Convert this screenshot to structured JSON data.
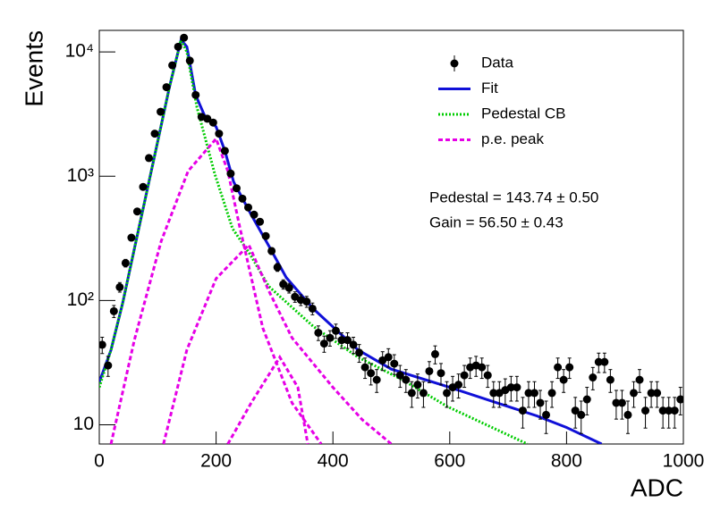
{
  "chart_data": {
    "type": "line",
    "xlabel": "ADC",
    "ylabel": "Events",
    "xlim": [
      0,
      1000
    ],
    "ylim": [
      7,
      14900
    ],
    "yscale": "log",
    "xticks": [
      0,
      200,
      400,
      600,
      800,
      1000
    ],
    "yticks": [
      10,
      {
        "value": 100,
        "label": "10²"
      },
      {
        "value": 1000,
        "label": "10³"
      },
      {
        "value": 10000,
        "label": "10⁴"
      }
    ],
    "legend": "top-right",
    "annotations": [
      "Pedestal = 143.74 ± 0.50",
      "Gain = 56.50 ± 0.43"
    ],
    "series": [
      {
        "name": "Data",
        "type": "errorbar",
        "color": "#000000",
        "x": [
          5,
          15,
          25,
          35,
          45,
          55,
          65,
          75,
          85,
          95,
          105,
          115,
          125,
          135,
          145,
          155,
          165,
          175,
          185,
          195,
          205,
          215,
          225,
          235,
          245,
          255,
          265,
          275,
          285,
          295,
          305,
          315,
          325,
          335,
          345,
          355,
          365,
          375,
          385,
          395,
          405,
          415,
          425,
          435,
          445,
          455,
          465,
          475,
          485,
          495,
          505,
          515,
          525,
          535,
          545,
          555,
          565,
          575,
          585,
          595,
          605,
          615,
          625,
          635,
          645,
          655,
          665,
          675,
          685,
          695,
          705,
          715,
          725,
          735,
          745,
          755,
          765,
          775,
          785,
          795,
          805,
          815,
          825,
          835,
          845,
          855,
          865,
          875,
          885,
          895,
          905,
          915,
          925,
          935,
          945,
          955,
          965,
          975,
          985,
          995
        ],
        "values": [
          44,
          30,
          82,
          128,
          200,
          320,
          520,
          820,
          1400,
          2200,
          3300,
          5200,
          7800,
          11000,
          13000,
          8500,
          4500,
          3000,
          2900,
          2700,
          2200,
          1600,
          1050,
          800,
          660,
          560,
          490,
          430,
          330,
          250,
          185,
          135,
          126,
          107,
          101,
          98,
          86,
          55,
          45,
          50,
          57,
          48,
          48,
          44,
          38,
          29,
          26,
          23,
          33,
          35,
          31,
          25,
          23,
          18,
          21,
          18,
          27,
          37,
          26,
          18,
          20,
          21,
          25,
          29,
          30,
          29,
          25,
          18,
          18,
          19,
          20,
          20,
          13,
          18,
          18,
          15,
          12,
          18,
          29,
          23,
          29,
          13,
          12,
          16,
          24,
          32,
          32,
          23,
          15,
          15,
          12,
          18,
          23,
          13,
          18,
          18,
          13,
          13,
          13,
          16
        ],
        "errors": [
          6.6,
          5.5,
          9.1,
          11.3,
          14.1,
          17.9,
          22.8,
          28.6,
          37.4,
          46.9,
          57.4,
          72.1,
          88.3,
          104.9,
          114,
          92.2,
          67.1,
          54.8,
          53.9,
          52,
          46.9,
          40,
          32.4,
          28.3,
          25.7,
          23.7,
          22.1,
          20.7,
          18.2,
          15.8,
          13.6,
          11.6,
          11.2,
          10.3,
          10,
          9.9,
          9.3,
          7.4,
          6.7,
          7.1,
          7.5,
          6.9,
          6.9,
          6.6,
          6.2,
          5.4,
          5.1,
          4.8,
          5.7,
          5.9,
          5.6,
          5,
          4.8,
          4.2,
          4.6,
          4.2,
          5.2,
          6.1,
          5.1,
          4.2,
          4.5,
          4.6,
          5,
          5.4,
          5.5,
          5.4,
          5,
          4.2,
          4.2,
          4.4,
          4.5,
          4.5,
          3.6,
          4.2,
          4.2,
          3.9,
          3.5,
          4.2,
          5.4,
          4.8,
          5.4,
          3.6,
          3.5,
          4,
          4.9,
          5.7,
          5.7,
          4.8,
          3.9,
          3.9,
          3.5,
          4.2,
          4.8,
          3.6,
          4.2,
          4.2,
          3.6,
          3.6,
          3.6,
          4
        ]
      },
      {
        "name": "Fit",
        "type": "line",
        "style": "solid",
        "color": "#1010d8",
        "x": [
          0,
          20,
          40,
          60,
          80,
          100,
          120,
          140,
          150,
          165,
          180,
          200,
          215,
          230,
          260,
          290,
          320,
          366,
          443,
          500,
          600,
          700,
          749,
          800,
          860
        ],
        "values": [
          22,
          40,
          95,
          260,
          700,
          1900,
          5200,
          12500,
          11000,
          4500,
          3100,
          2500,
          1600,
          900,
          490,
          276,
          153,
          86,
          40,
          28,
          20,
          14,
          11.8,
          9.5,
          7
        ]
      },
      {
        "name": "Pedestal CB",
        "type": "line",
        "style": "dotted",
        "color": "#00cc00",
        "x": [
          0,
          20,
          40,
          60,
          80,
          100,
          120,
          140,
          150,
          167,
          198,
          228,
          259,
          290,
          366,
          443,
          519,
          596,
          733
        ],
        "values": [
          20,
          40,
          95,
          260,
          700,
          1900,
          5200,
          12500,
          10000,
          3600,
          1030,
          380,
          232,
          130,
          62,
          35,
          23,
          14,
          7
        ]
      },
      {
        "name": "p.e. peak",
        "type": "line",
        "style": "dashed",
        "color": "#e600e6",
        "x": [
          20,
          60,
          106,
          152,
          200,
          220,
          240,
          280,
          330,
          380,
          null,
          110,
          150,
          200,
          256,
          290,
          330,
          400,
          450,
          500,
          null,
          220,
          260,
          309,
          340,
          357
        ],
        "values": [
          7,
          48,
          300,
          1100,
          2000,
          1100,
          400,
          60,
          15,
          7,
          null,
          7,
          40,
          150,
          280,
          120,
          50,
          20,
          11,
          7,
          null,
          7,
          15,
          35,
          20,
          7
        ]
      }
    ]
  }
}
